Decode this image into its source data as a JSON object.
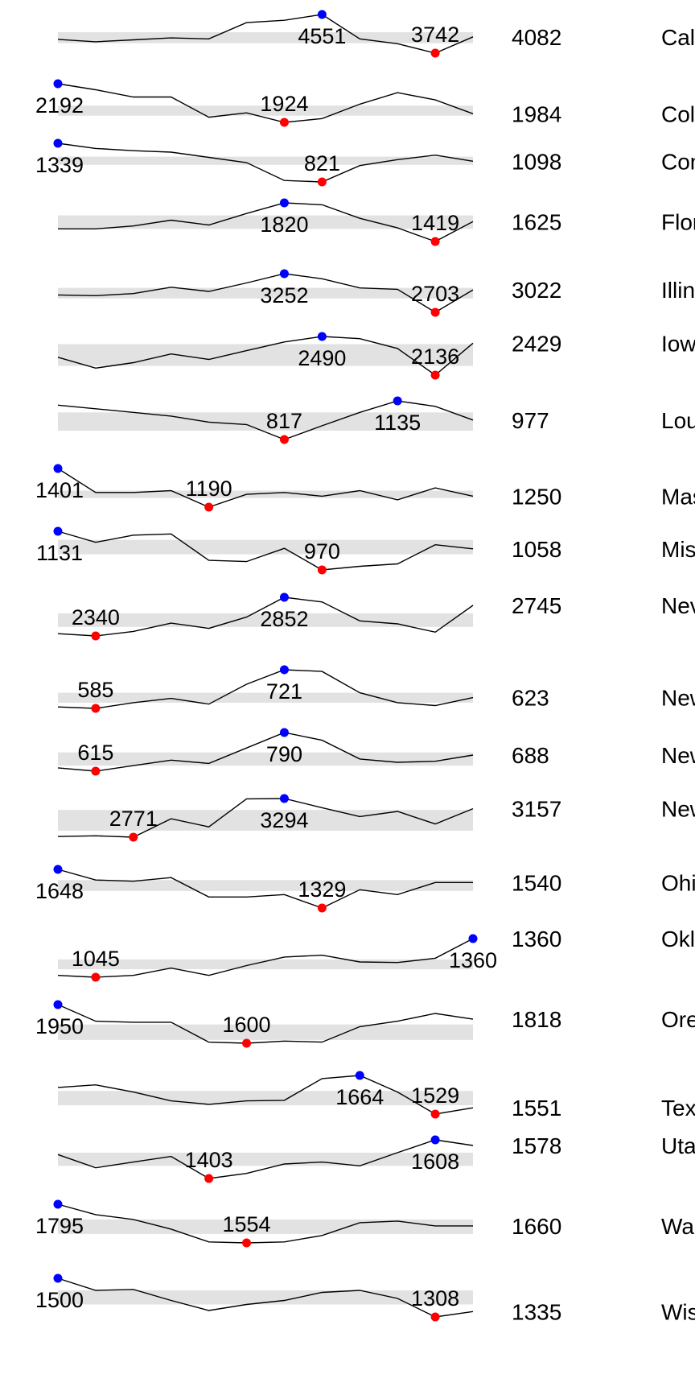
{
  "chart_data": {
    "type": "line",
    "title": "",
    "xlabel": "",
    "ylabel": "",
    "grid": false,
    "legend": "none",
    "colors": {
      "line": "#000000",
      "band": "#e2e2e2",
      "max_marker": "#0000ff",
      "min_marker": "#ff0000"
    },
    "rows": [
      {
        "state": "California",
        "value_label": "4082",
        "max_label": "4551",
        "min_label": "3742",
        "band": [
          3950,
          4180
        ],
        "values": [
          4030,
          3980,
          4020,
          4060,
          4040,
          4380,
          4430,
          4551,
          4040,
          3940,
          3742,
          4082
        ]
      },
      {
        "state": "Colorado",
        "value_label": "1984",
        "max_label": "2192",
        "min_label": "1924",
        "band": [
          1970,
          2040
        ],
        "values": [
          2192,
          2150,
          2100,
          2100,
          1960,
          1990,
          1924,
          1950,
          2050,
          2130,
          2080,
          1984
        ]
      },
      {
        "state": "Connecticut",
        "value_label": "1098",
        "max_label": "1339",
        "min_label": "821",
        "band": [
          1050,
          1160
        ],
        "values": [
          1339,
          1270,
          1240,
          1220,
          1150,
          1080,
          840,
          821,
          1040,
          1120,
          1180,
          1098
        ]
      },
      {
        "state": "Florida",
        "value_label": "1625",
        "max_label": "1820",
        "min_label": "1419",
        "band": [
          1550,
          1690
        ],
        "values": [
          1550,
          1550,
          1580,
          1640,
          1590,
          1710,
          1820,
          1800,
          1660,
          1560,
          1419,
          1625
        ]
      },
      {
        "state": "Illinois",
        "value_label": "3022",
        "max_label": "3252",
        "min_label": "2703",
        "band": [
          2900,
          3050
        ],
        "values": [
          2950,
          2940,
          2970,
          3060,
          3000,
          3120,
          3252,
          3180,
          3050,
          3030,
          2703,
          3022
        ]
      },
      {
        "state": "Iowa",
        "value_label": "2429",
        "max_label": "2490",
        "min_label": "2136",
        "band": [
          2220,
          2420
        ],
        "values": [
          2300,
          2200,
          2250,
          2330,
          2280,
          2360,
          2440,
          2490,
          2470,
          2380,
          2136,
          2429
        ]
      },
      {
        "state": "Louisiana",
        "value_label": "977",
        "max_label": "1135",
        "min_label": "817",
        "band": [
          890,
          1040
        ],
        "values": [
          1100,
          1070,
          1040,
          1010,
          960,
          940,
          817,
          930,
          1040,
          1135,
          1090,
          977
        ]
      },
      {
        "state": "Massachusetts",
        "value_label": "1250",
        "max_label": "1401",
        "min_label": "1190",
        "band": [
          1240,
          1280
        ],
        "values": [
          1401,
          1270,
          1270,
          1280,
          1190,
          1260,
          1270,
          1250,
          1280,
          1230,
          1295,
          1250
        ]
      },
      {
        "state": "Mississippi",
        "value_label": "1058",
        "max_label": "1131",
        "min_label": "970",
        "band": [
          1035,
          1095
        ],
        "values": [
          1131,
          1085,
          1115,
          1120,
          1010,
          1005,
          1060,
          970,
          985,
          995,
          1075,
          1058
        ]
      },
      {
        "state": "Nevada",
        "value_label": "2745",
        "max_label": "2852",
        "min_label": "2340",
        "band": [
          2460,
          2640
        ],
        "values": [
          2370,
          2340,
          2400,
          2510,
          2440,
          2590,
          2852,
          2790,
          2540,
          2500,
          2390,
          2745
        ]
      },
      {
        "state": "New Hampshire",
        "value_label": "623",
        "max_label": "721",
        "min_label": "585",
        "band": [
          605,
          640
        ],
        "values": [
          590,
          585,
          605,
          620,
          600,
          670,
          721,
          715,
          640,
          605,
          595,
          623
        ]
      },
      {
        "state": "New Jersey",
        "value_label": "688",
        "max_label": "790",
        "min_label": "615",
        "band": [
          640,
          700
        ],
        "values": [
          630,
          615,
          640,
          665,
          650,
          720,
          790,
          755,
          670,
          655,
          660,
          688
        ]
      },
      {
        "state": "New York",
        "value_label": "3157",
        "max_label": "3294",
        "min_label": "2771",
        "band": [
          2860,
          3140
        ],
        "values": [
          2780,
          2790,
          2771,
          3020,
          2910,
          3290,
          3294,
          3170,
          3050,
          3120,
          2950,
          3157
        ]
      },
      {
        "state": "Ohio",
        "value_label": "1540",
        "max_label": "1648",
        "min_label": "1329",
        "band": [
          1470,
          1560
        ],
        "values": [
          1648,
          1560,
          1550,
          1580,
          1420,
          1420,
          1440,
          1329,
          1480,
          1440,
          1540,
          1540
        ]
      },
      {
        "state": "Oklahoma",
        "value_label": "1360",
        "max_label": "1360",
        "min_label": "1045",
        "band": [
          1110,
          1190
        ],
        "values": [
          1060,
          1045,
          1060,
          1120,
          1060,
          1140,
          1210,
          1225,
          1170,
          1165,
          1200,
          1360
        ]
      },
      {
        "state": "Oregon",
        "value_label": "1818",
        "max_label": "1950",
        "min_label": "1600",
        "band": [
          1630,
          1770
        ],
        "values": [
          1950,
          1800,
          1790,
          1790,
          1610,
          1600,
          1620,
          1610,
          1750,
          1800,
          1870,
          1818
        ]
      },
      {
        "state": "Texas",
        "value_label": "1551",
        "max_label": "1664",
        "min_label": "1529",
        "band": [
          1560,
          1610
        ],
        "values": [
          1622,
          1631,
          1606,
          1575,
          1563,
          1575,
          1577,
          1653,
          1664,
          1606,
          1529,
          1551
        ]
      },
      {
        "state": "Utah",
        "value_label": "1578",
        "max_label": "1608",
        "min_label": "1403",
        "band": [
          1470,
          1540
        ],
        "values": [
          1530,
          1460,
          1490,
          1520,
          1403,
          1430,
          1480,
          1490,
          1470,
          1540,
          1608,
          1578
        ]
      },
      {
        "state": "Washington",
        "value_label": "1660",
        "max_label": "1795",
        "min_label": "1554",
        "band": [
          1610,
          1700
        ],
        "values": [
          1795,
          1730,
          1700,
          1640,
          1560,
          1554,
          1560,
          1600,
          1680,
          1690,
          1660,
          1660
        ]
      },
      {
        "state": "Wisconsin",
        "value_label": "1335",
        "max_label": "1500",
        "min_label": "1308",
        "band": [
          1370,
          1440
        ],
        "values": [
          1500,
          1440,
          1445,
          1390,
          1340,
          1370,
          1390,
          1430,
          1440,
          1400,
          1308,
          1335
        ]
      }
    ]
  }
}
